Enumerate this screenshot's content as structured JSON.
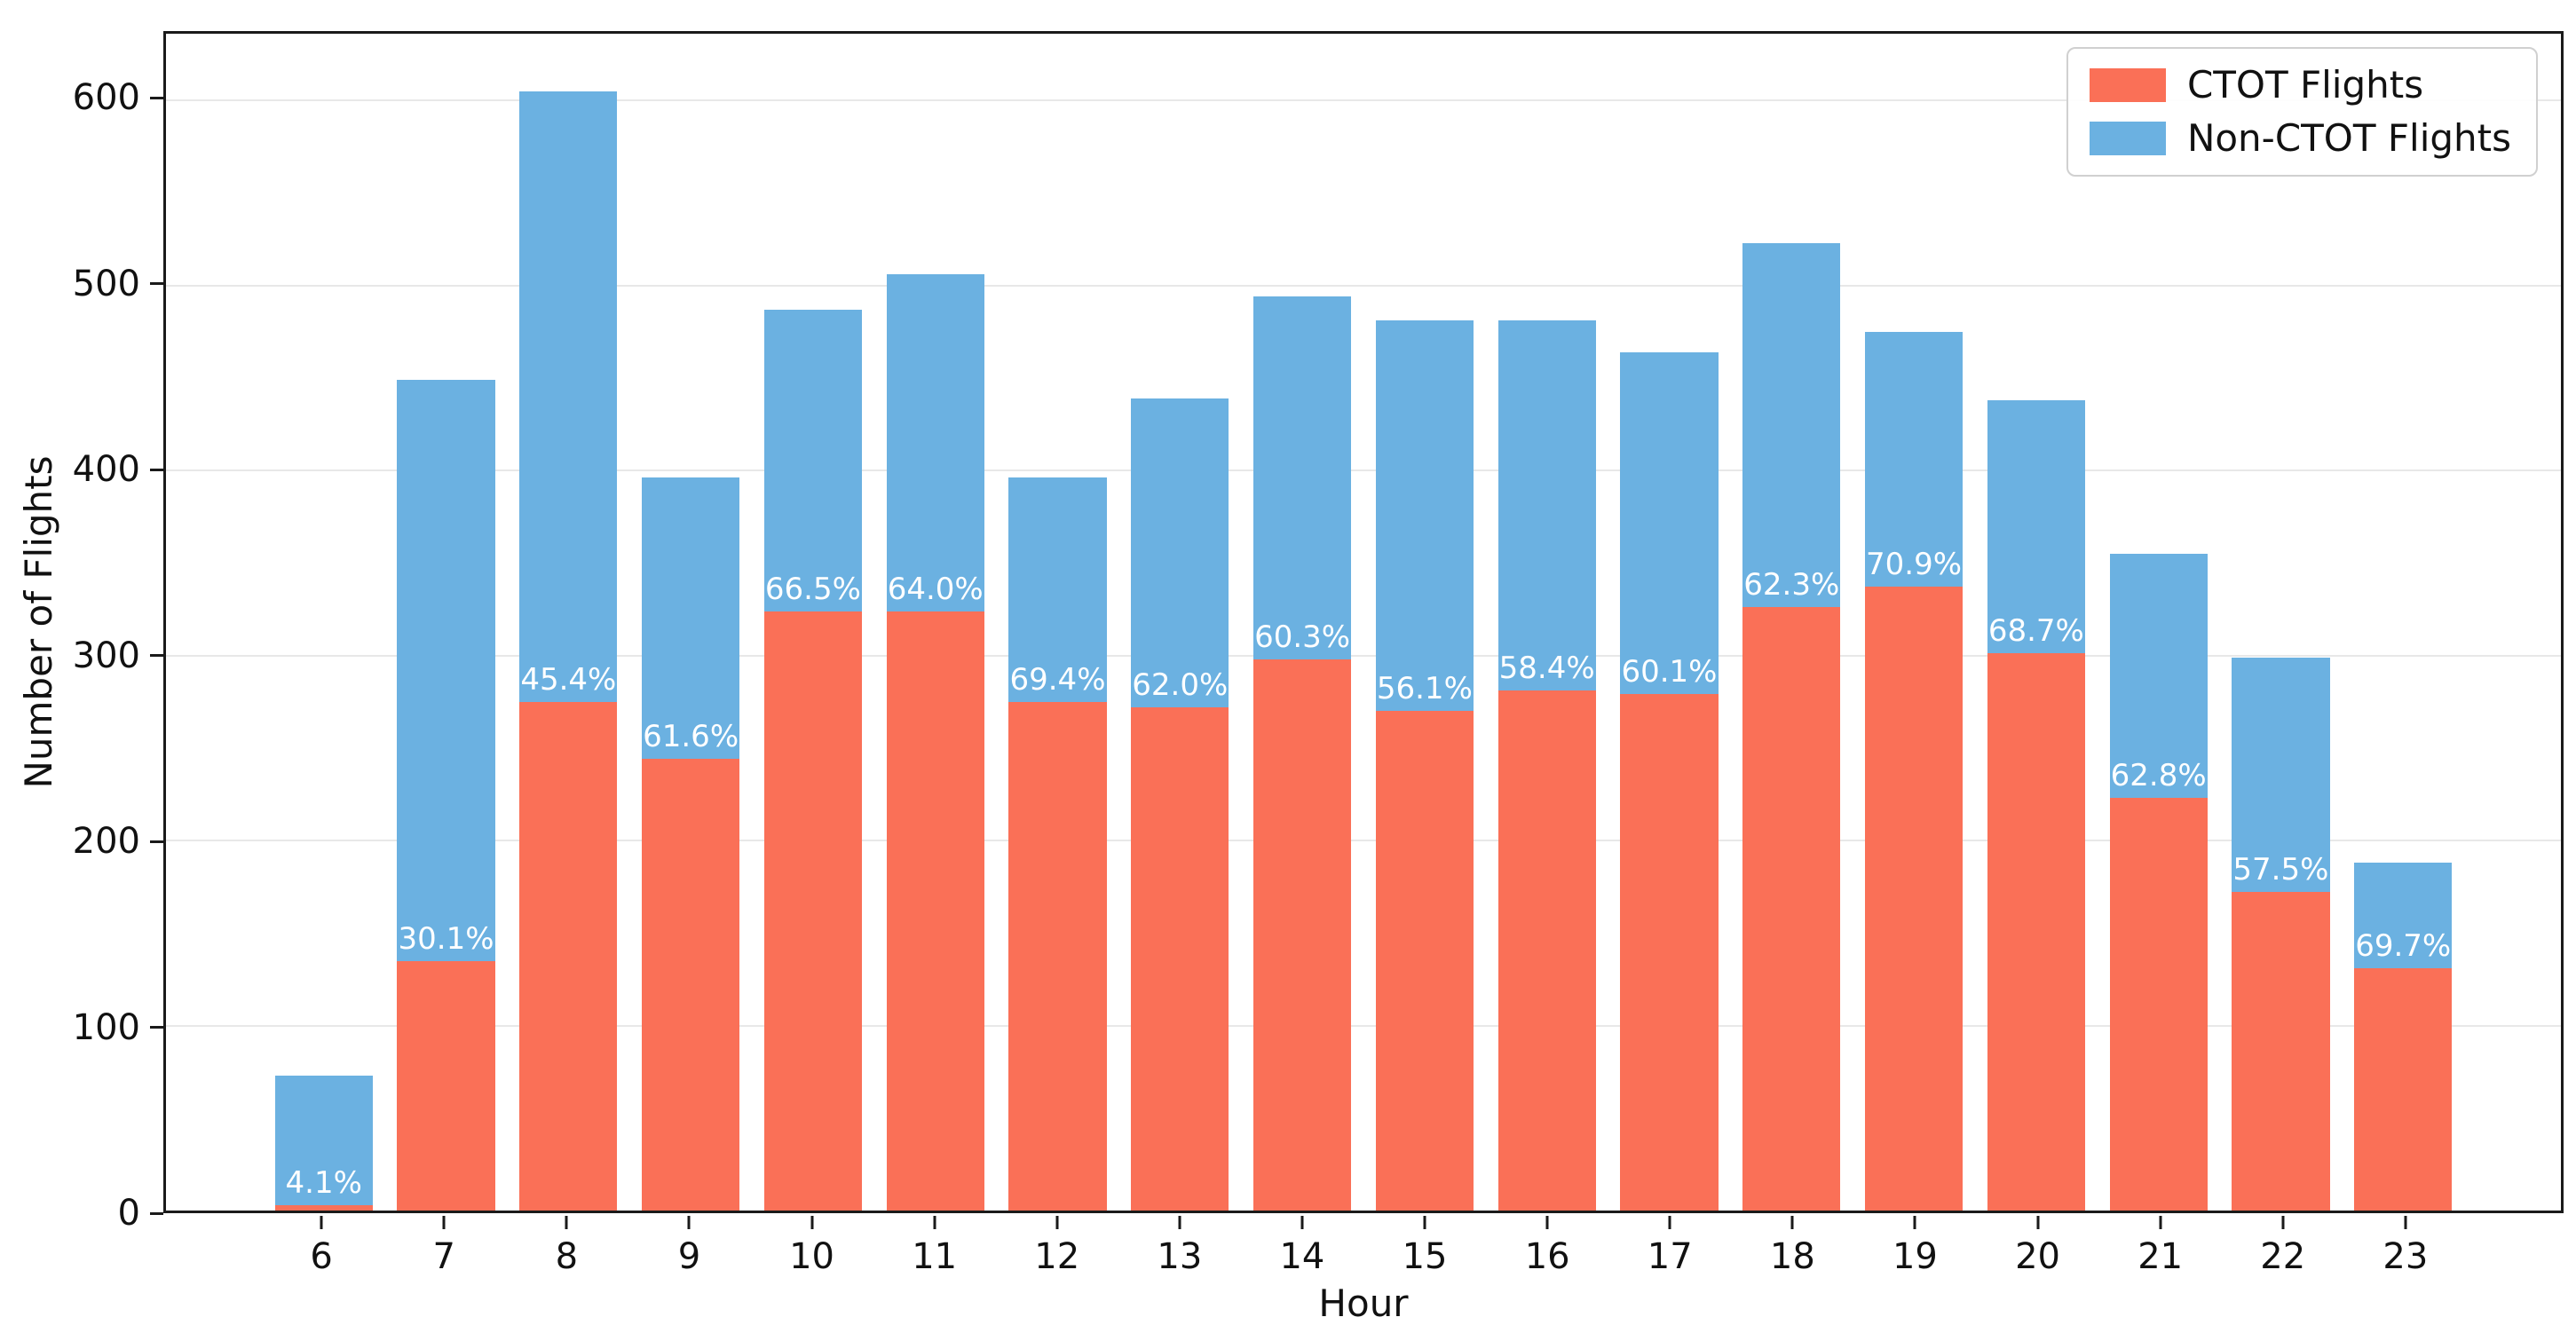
{
  "figure": {
    "background_color": "#ffffff",
    "title": ""
  },
  "chart_data": {
    "type": "bar",
    "stacked": true,
    "title": "",
    "xlabel": "Hour",
    "ylabel": "Number of Flights",
    "categories": [
      6,
      7,
      8,
      9,
      10,
      11,
      12,
      13,
      14,
      15,
      16,
      17,
      18,
      19,
      20,
      21,
      22,
      23
    ],
    "series": [
      {
        "name": "CTOT Flights",
        "color": "#FA7057",
        "values": [
          3,
          135,
          275,
          244,
          324,
          324,
          275,
          272,
          298,
          270,
          281,
          279,
          326,
          337,
          301,
          223,
          172,
          131
        ]
      },
      {
        "name": "Non-CTOT Flights",
        "color": "#6BB1E1",
        "values": [
          70,
          314,
          330,
          152,
          163,
          182,
          121,
          167,
          196,
          211,
          200,
          185,
          197,
          138,
          137,
          132,
          127,
          57
        ]
      }
    ],
    "totals": [
      73,
      449,
      605,
      396,
      487,
      506,
      396,
      439,
      494,
      481,
      481,
      464,
      523,
      475,
      438,
      355,
      299,
      188
    ],
    "bar_labels": [
      "4.1%",
      "30.1%",
      "45.4%",
      "61.6%",
      "66.5%",
      "64.0%",
      "69.4%",
      "62.0%",
      "60.3%",
      "56.1%",
      "58.4%",
      "60.1%",
      "62.3%",
      "70.9%",
      "68.7%",
      "62.8%",
      "57.5%",
      "69.7%"
    ],
    "bar_label_meaning": "CTOT share of total flights per hour",
    "bar_label_color": "#ffffff",
    "yticks": [
      0,
      100,
      200,
      300,
      400,
      500,
      600
    ],
    "ytick_labels": [
      "0",
      "100",
      "200",
      "300",
      "400",
      "500",
      "600"
    ],
    "ylim": [
      0,
      636
    ],
    "xlim": [
      4.71,
      24.29
    ],
    "bar_width_units": 0.8,
    "grid": "horizontal",
    "grid_color": "#e8e8e8",
    "spine_color": "#1a1a1a",
    "legend_position": "upper right"
  }
}
